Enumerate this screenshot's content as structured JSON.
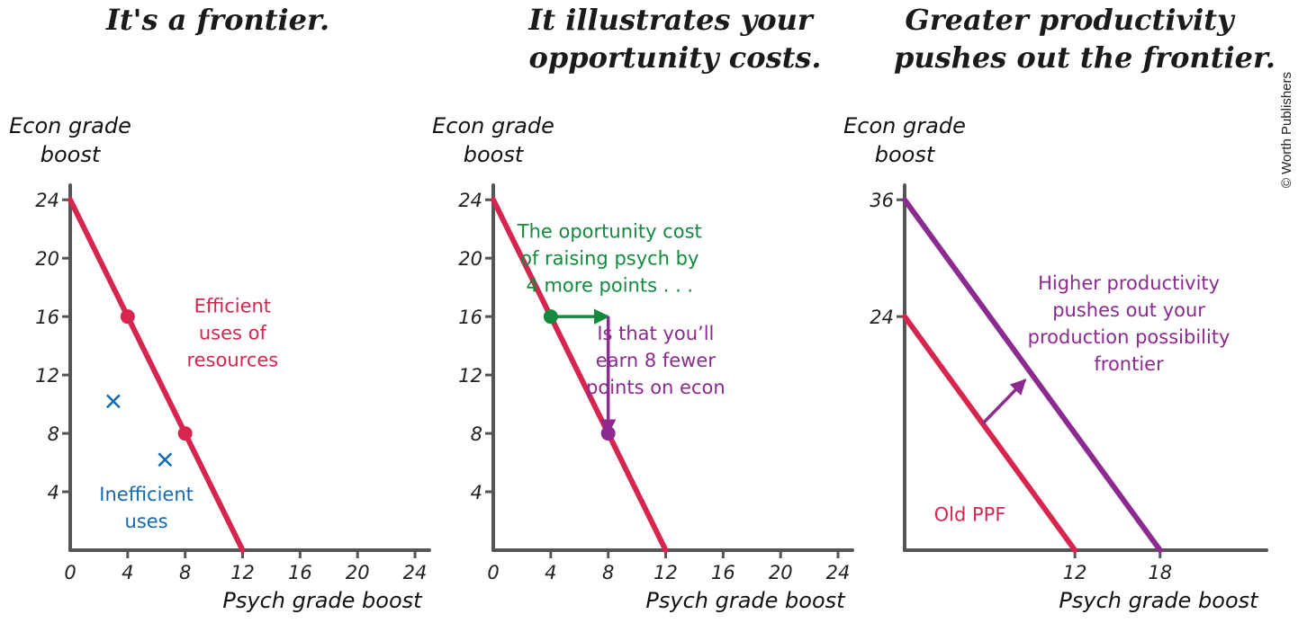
{
  "copyright": "© Worth Publishers",
  "colors": {
    "red": "#d6264f",
    "purple": "#8b2a8f",
    "green": "#138a3d",
    "blue": "#1569b0",
    "axis": "#555555"
  },
  "chart_data": [
    {
      "type": "line",
      "title": "It's a frontier.",
      "ylabel_line1": "Econ grade",
      "ylabel_line2": "boost",
      "xlabel": "Psych grade boost",
      "xlim": [
        0,
        25
      ],
      "ylim": [
        0,
        25
      ],
      "x_ticks": [
        0,
        4,
        8,
        12,
        16,
        20,
        24
      ],
      "y_ticks": [
        4,
        8,
        12,
        16,
        20,
        24
      ],
      "series": [
        {
          "color": "red",
          "points": [
            [
              0,
              24
            ],
            [
              12,
              0
            ]
          ]
        }
      ],
      "efficient_points": [
        [
          4,
          16
        ],
        [
          8,
          8
        ]
      ],
      "inefficient_points": [
        [
          3,
          10.2
        ],
        [
          6.6,
          6.2
        ]
      ],
      "annotations": [
        {
          "color": "red",
          "x": 11.3,
          "y": 16.3,
          "lines": [
            "Efficient",
            "uses of",
            "resources"
          ]
        },
        {
          "color": "blue",
          "x": 5.3,
          "y": 3.4,
          "lines": [
            "Inefficient",
            "uses"
          ]
        }
      ]
    },
    {
      "type": "line",
      "title_line1": "It illustrates your",
      "title_line2": "opportunity costs.",
      "ylabel_line1": "Econ grade",
      "ylabel_line2": "boost",
      "xlabel": "Psych grade boost",
      "xlim": [
        0,
        25
      ],
      "ylim": [
        0,
        25
      ],
      "x_ticks": [
        0,
        4,
        8,
        12,
        16,
        20,
        24
      ],
      "y_ticks": [
        4,
        8,
        12,
        16,
        20,
        24
      ],
      "series": [
        {
          "color": "red",
          "points": [
            [
              0,
              24
            ],
            [
              12,
              0
            ]
          ]
        }
      ],
      "points": [
        {
          "x": 4,
          "y": 16,
          "color": "green"
        },
        {
          "x": 8,
          "y": 8,
          "color": "purple"
        }
      ],
      "arrows": [
        {
          "from": [
            4,
            16
          ],
          "to": [
            8,
            16
          ],
          "color": "green"
        },
        {
          "from": [
            8,
            16
          ],
          "to": [
            8,
            8
          ],
          "color": "purple"
        }
      ],
      "annotations": [
        {
          "color": "green",
          "x": 8.1,
          "y": 21.4,
          "lines": [
            "The oportunity cost",
            "of raising psych by",
            "4 more points . . ."
          ]
        },
        {
          "color": "purple",
          "x": 11.3,
          "y": 14.4,
          "lines": [
            "Is that you’ll",
            "earn 8 fewer",
            "points on econ"
          ]
        }
      ]
    },
    {
      "type": "line",
      "title_line1": "Greater productivity",
      "title_line2": "pushes out the frontier.",
      "ylabel_line1": "Econ grade",
      "ylabel_line2": "boost",
      "xlabel": "Psych grade boost",
      "xlim": [
        0,
        25.5
      ],
      "ylim": [
        0,
        37.5
      ],
      "x_ticks": [
        12,
        18
      ],
      "y_ticks": [
        24,
        36
      ],
      "y_tick_colors": [
        "red",
        "purple"
      ],
      "series": [
        {
          "color": "red",
          "points": [
            [
              0,
              24
            ],
            [
              12,
              0
            ]
          ]
        },
        {
          "color": "purple",
          "points": [
            [
              0,
              36
            ],
            [
              18,
              0
            ]
          ]
        }
      ],
      "arrows": [
        {
          "from": [
            5.5,
            13.0
          ],
          "to": [
            8.5,
            17.5
          ],
          "color": "purple"
        }
      ],
      "annotations": [
        {
          "color": "red",
          "x": 4.6,
          "y": 3.0,
          "lines": [
            "Old PPF"
          ]
        },
        {
          "color": "purple",
          "x": 15.8,
          "y": 26.8,
          "lines": [
            "Higher productivity",
            "pushes out your",
            "production possibility",
            "frontier"
          ]
        }
      ]
    }
  ]
}
